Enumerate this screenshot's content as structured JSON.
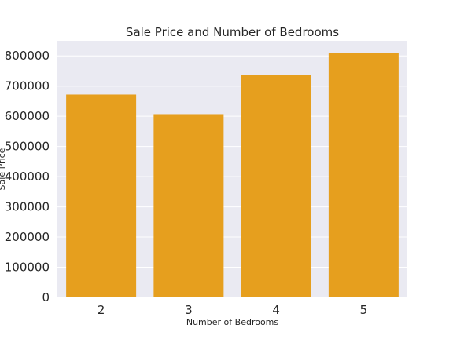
{
  "chart_data": {
    "type": "bar",
    "title": "Sale Price and Number of Bedrooms",
    "xlabel": "Number of Bedrooms",
    "ylabel": "Sale Price",
    "categories": [
      "2",
      "3",
      "4",
      "5"
    ],
    "values": [
      672000,
      607000,
      737000,
      810000
    ],
    "ylim": [
      0,
      850000
    ],
    "yticks": [
      "0",
      "100000",
      "200000",
      "300000",
      "400000",
      "500000",
      "600000",
      "700000",
      "800000"
    ],
    "grid": true,
    "legend": "none",
    "colors": {
      "bar": "#E69F1E",
      "background": "#EAEAF2",
      "grid": "#FFFFFF"
    }
  }
}
